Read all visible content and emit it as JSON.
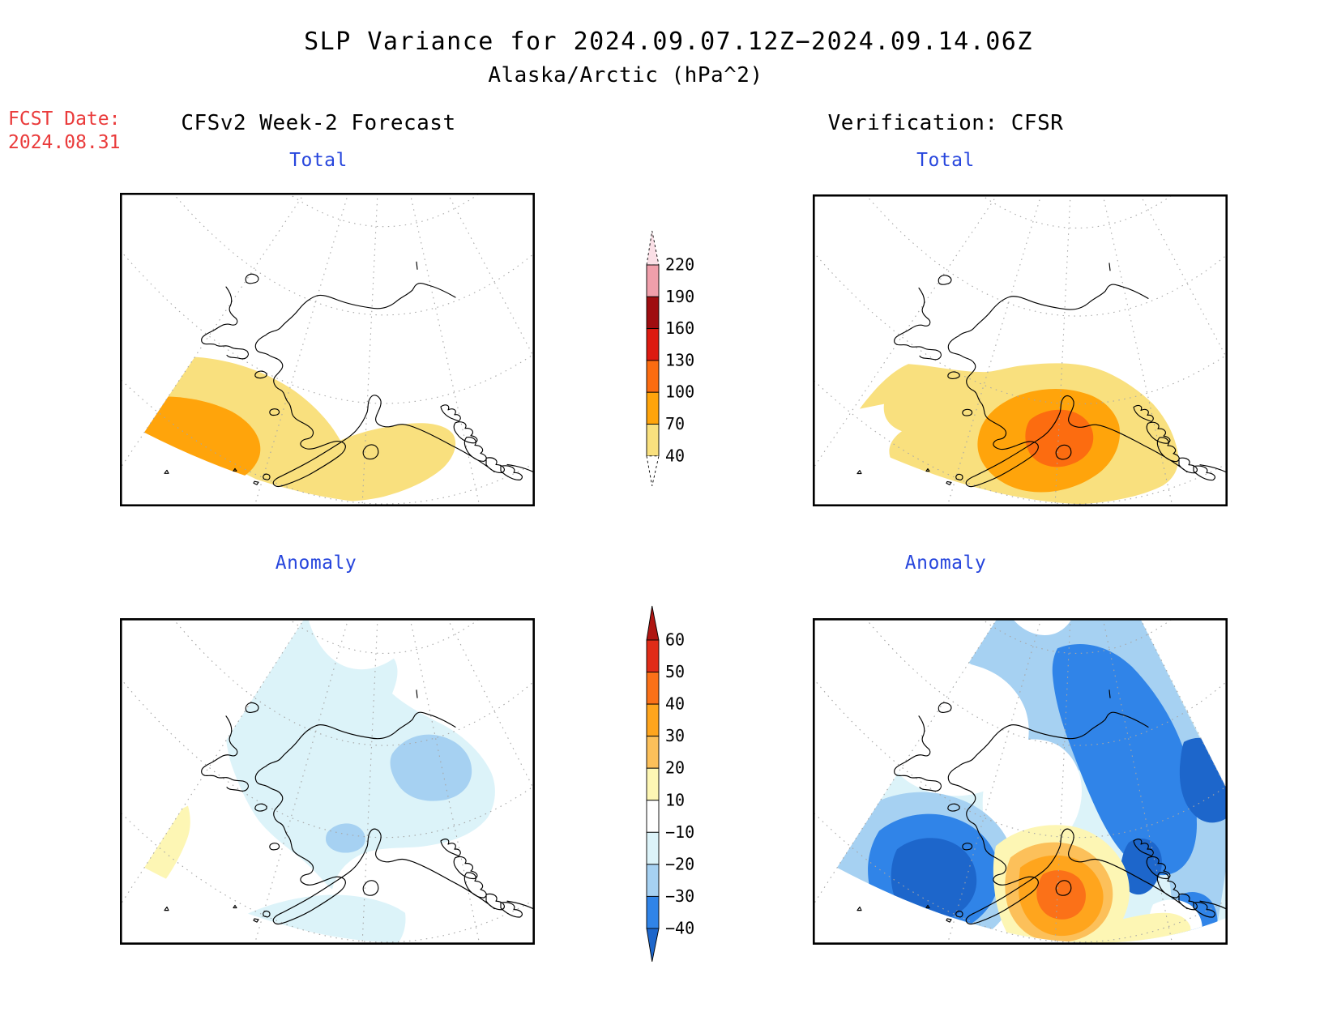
{
  "header": {
    "title_line1": "SLP Variance for 2024.09.07.12Z−2024.09.14.06Z",
    "title_line2": "Alaska/Arctic (hPa^2)",
    "fcst_label": "FCST Date:",
    "fcst_date": "2024.08.31",
    "fcst_color": "#ea3b3b",
    "left_column_header": "CFSv2 Week-2 Forecast",
    "right_column_header": "Verification: CFSR",
    "panel_title_color": "#2746dd"
  },
  "panels": {
    "forecast_total": {
      "title": "Total"
    },
    "verification_total": {
      "title": "Total"
    },
    "forecast_anomaly": {
      "title": "Anomaly"
    },
    "verification_anomaly": {
      "title": "Anomaly"
    }
  },
  "colorbars": {
    "total": {
      "levels_desc": [
        "220",
        "190",
        "160",
        "130",
        "100",
        "70",
        "40"
      ],
      "band_colors": [
        "#F9E07E",
        "#FFA40B",
        "#FC6C10",
        "#DD1A10",
        "#9F0D10",
        "#F09FAB"
      ],
      "above_color": "#FADFE6",
      "below_color": "#FFFFFF"
    },
    "anomaly": {
      "levels_desc": [
        "60",
        "50",
        "40",
        "30",
        "20",
        "10",
        "−10",
        "−20",
        "−30",
        "−40"
      ],
      "band_colors": [
        "#3084E8",
        "#A6D1F2",
        "#DCF3F9",
        "#FFFFFF",
        "#FDF6B4",
        "#FCC05A",
        "#FFA51D",
        "#FB7118",
        "#E02C18"
      ],
      "above_color": "#AF1612",
      "below_color": "#1D66CB"
    }
  },
  "chart_data": [
    {
      "type": "heatmap",
      "subtype": "filled-contour map",
      "panel": "CFSv2 Week-2 Forecast / Total",
      "units": "hPa^2",
      "contour_levels": [
        40,
        70,
        100,
        130,
        160,
        190,
        220
      ],
      "regions": [
        {
          "band": "40–70",
          "color": "#F9E07E",
          "location": "broad band over Bering Sea, Aleutians and Gulf of Alaska coast (southwest half of domain)"
        },
        {
          "band": "70–100",
          "color": "#FFA40B",
          "location": "maximum over the southwestern Bering Sea (lower-left of panel)"
        }
      ]
    },
    {
      "type": "heatmap",
      "subtype": "filled-contour map",
      "panel": "Verification: CFSR / Total",
      "units": "hPa^2",
      "contour_levels": [
        40,
        70,
        100,
        130,
        160,
        190,
        220
      ],
      "regions": [
        {
          "band": "40–70",
          "color": "#F9E07E",
          "location": "wide area across Bering Sea, southwest Alaska and Gulf of Alaska"
        },
        {
          "band": "70–100",
          "color": "#FFA40B",
          "location": "large blob over Alaska Peninsula / Cook Inlet region"
        },
        {
          "band": "100–130",
          "color": "#FC6C10",
          "location": "core just south of Kenai Peninsula / Kodiak"
        }
      ]
    },
    {
      "type": "heatmap",
      "subtype": "filled-contour map",
      "panel": "CFSv2 Week-2 Forecast / Anomaly",
      "units": "hPa^2",
      "contour_levels": [
        -40,
        -30,
        -20,
        -10,
        10,
        20,
        30,
        40,
        50,
        60
      ],
      "regions": [
        {
          "band": "−20–−10",
          "color": "#DCF3F9",
          "location": "large pale area over interior/eastern Alaska and a bowl along the southern boundary"
        },
        {
          "band": "−30–−20",
          "color": "#A6D1F2",
          "location": "blob over eastern interior (upper right) and small spot at Cook Inlet"
        },
        {
          "band": "10–20",
          "color": "#FDF6B4",
          "location": "small wedge on the lower-left domain boundary"
        }
      ]
    },
    {
      "type": "heatmap",
      "subtype": "filled-contour map",
      "panel": "Verification: CFSR / Anomaly",
      "units": "hPa^2",
      "contour_levels": [
        -40,
        -30,
        -20,
        -10,
        10,
        20,
        30,
        40,
        50,
        60
      ],
      "regions": [
        {
          "band": "≤−40",
          "color": "#1D66CB",
          "location": "cores west of Bering Strait (left blob) and along the eastern boundary"
        },
        {
          "band": "−40–−30",
          "color": "#3084E8",
          "location": "diagonal band from top-center to the eastern edge and ring of left blob"
        },
        {
          "band": "−30–−20",
          "color": "#A6D1F2",
          "location": "broad swath across the north and east, mass over western Bering Sea"
        },
        {
          "band": "−20–−10",
          "color": "#DCF3F9",
          "location": "background pale tint over much of the domain"
        },
        {
          "band": "10–20",
          "color": "#FDF6B4",
          "location": "outer ring of positive anomaly near Cook Inlet / Gulf of Alaska"
        },
        {
          "band": "20–30",
          "color": "#FCC05A",
          "location": "middle ring of the positive anomaly"
        },
        {
          "band": "30–40",
          "color": "#FFA51D",
          "location": "inner ring of the positive anomaly"
        },
        {
          "band": "40–50",
          "color": "#FB7118",
          "location": "core of the positive anomaly south of Kenai Peninsula"
        }
      ]
    }
  ]
}
